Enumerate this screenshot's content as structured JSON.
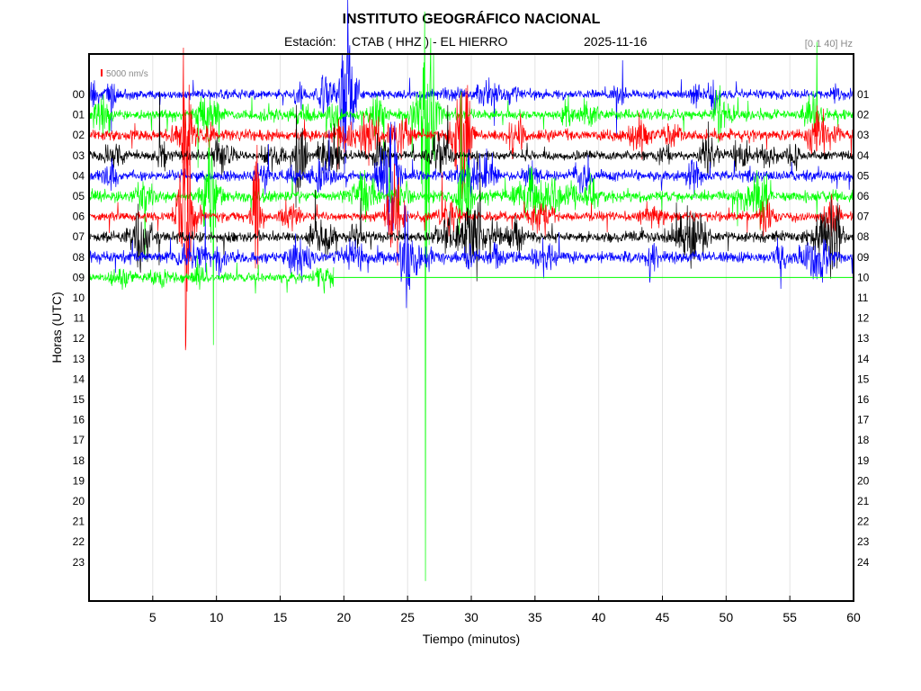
{
  "chart_data": {
    "type": "line",
    "title": "INSTITUTO GEOGRÁFICO NACIONAL",
    "station_label": "Estación:",
    "station": "CTAB ( HHZ ) - EL HIERRO",
    "date": "2025-11-16",
    "filter": "[0.1 40] Hz",
    "scale_label": "5000 nm/s",
    "xlabel": "Tiempo (minutos)",
    "ylabel": "Horas (UTC)",
    "xlim": [
      0,
      60
    ],
    "x_ticks": [
      5,
      10,
      15,
      20,
      25,
      30,
      35,
      40,
      45,
      50,
      55,
      60
    ],
    "left_hour_labels": [
      "00",
      "01",
      "02",
      "03",
      "04",
      "05",
      "06",
      "07",
      "08",
      "09",
      "10",
      "11",
      "12",
      "13",
      "14",
      "15",
      "16",
      "17",
      "18",
      "19",
      "20",
      "21",
      "22",
      "23"
    ],
    "right_hour_labels": [
      "01",
      "02",
      "03",
      "04",
      "05",
      "06",
      "07",
      "08",
      "09",
      "10",
      "11",
      "12",
      "13",
      "14",
      "15",
      "16",
      "17",
      "18",
      "19",
      "20",
      "21",
      "22",
      "23",
      "24"
    ],
    "grid": "vertical",
    "trace_colors": [
      "#0000ff",
      "#00ff00",
      "#ff0000",
      "#000000"
    ],
    "traces": [
      {
        "hour": "00",
        "color": "#0000ff",
        "end_minute": 60
      },
      {
        "hour": "01",
        "color": "#00ff00",
        "end_minute": 60
      },
      {
        "hour": "02",
        "color": "#ff0000",
        "end_minute": 60
      },
      {
        "hour": "03",
        "color": "#000000",
        "end_minute": 60
      },
      {
        "hour": "04",
        "color": "#0000ff",
        "end_minute": 60
      },
      {
        "hour": "05",
        "color": "#00ff00",
        "end_minute": 60
      },
      {
        "hour": "06",
        "color": "#ff0000",
        "end_minute": 60
      },
      {
        "hour": "07",
        "color": "#000000",
        "end_minute": 60
      },
      {
        "hour": "08",
        "color": "#0000ff",
        "end_minute": 60
      },
      {
        "hour": "09",
        "color": "#00ff00",
        "end_minute": 19.2
      }
    ]
  }
}
